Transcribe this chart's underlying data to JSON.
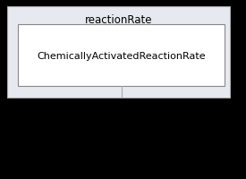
{
  "outer_box_label": "reactionRate",
  "inner_box_label": "ChemicallyActivatedReactionRate",
  "outer_box_color": "#e8e8f0",
  "outer_box_edge_color": "#aaaaaa",
  "inner_box_color": "#ffffff",
  "inner_box_edge_color": "#888888",
  "background_color": "#000000",
  "font_size_outer": 8.5,
  "font_size_inner": 8.0
}
